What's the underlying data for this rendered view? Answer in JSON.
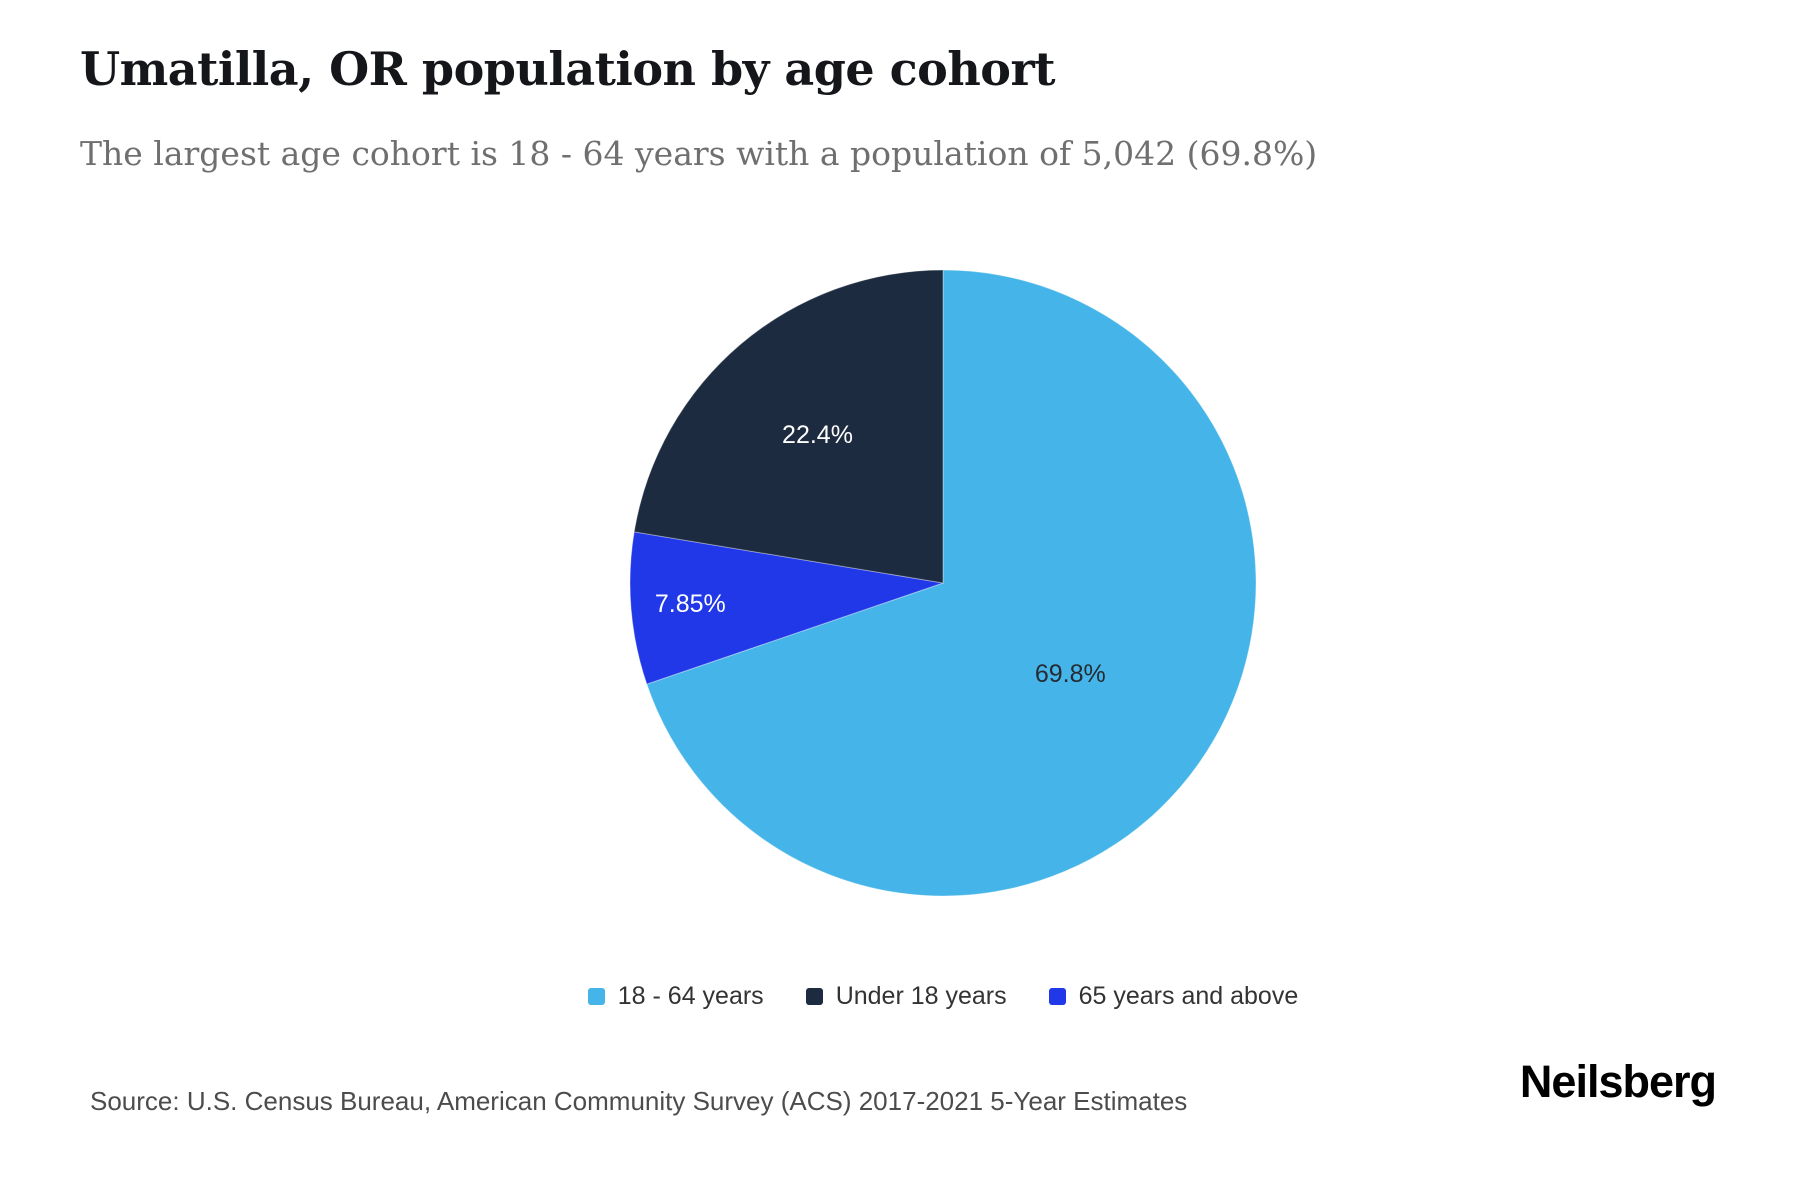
{
  "header": {
    "title": "Umatilla, OR population by age cohort",
    "subtitle": "The largest age cohort is 18 - 64 years with a population of 5,042 (69.8%)"
  },
  "chart_data": {
    "type": "pie",
    "title": "Umatilla, OR population by age cohort",
    "unit": "percent",
    "legend_position": "bottom",
    "start_angle_deg": 0,
    "direction": "clockwise",
    "draw_order": [
      0,
      2,
      1
    ],
    "slices": [
      {
        "label": "18 - 64 years",
        "value": 69.8,
        "display": "69.8%",
        "population": 5042,
        "color": "#45b5e9",
        "label_color": "#262b33"
      },
      {
        "label": "Under 18 years",
        "value": 22.4,
        "display": "22.4%",
        "color": "#1c2b3f",
        "label_color": "#ffffff"
      },
      {
        "label": "65 years and above",
        "value": 7.85,
        "display": "7.85%",
        "color": "#2038e8",
        "label_color": "#ffffff"
      }
    ]
  },
  "footer": {
    "source": "Source: U.S. Census Bureau, American Community Survey (ACS) 2017-2021 5-Year Estimates",
    "brand": "Neilsberg"
  }
}
